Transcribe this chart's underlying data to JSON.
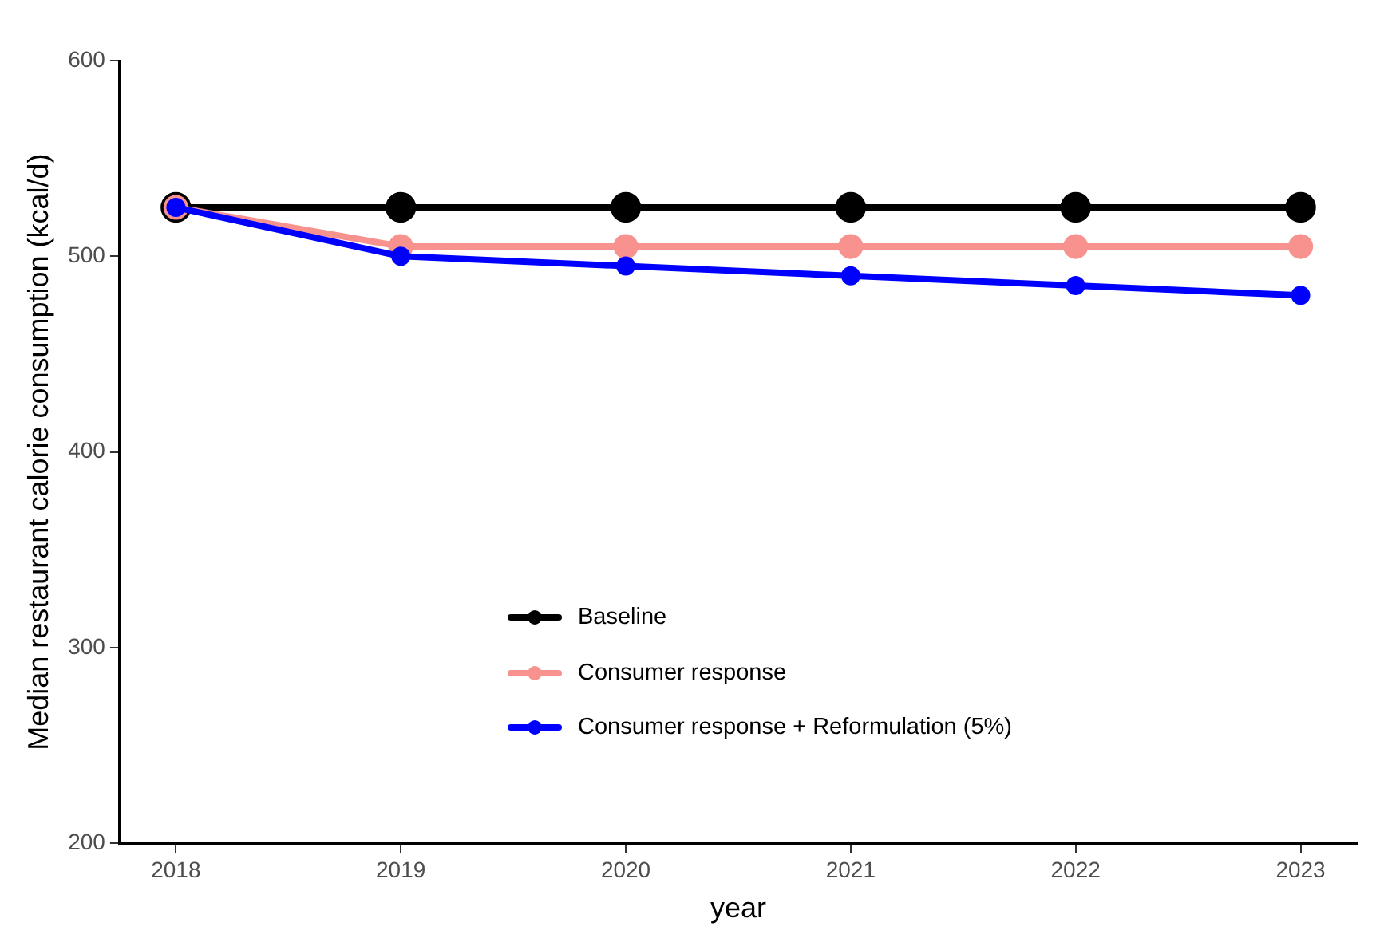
{
  "chart_data": {
    "type": "line",
    "xlabel": "year",
    "ylabel": "Median restaurant calorie consumption (kcal/d)",
    "x": [
      2018,
      2019,
      2020,
      2021,
      2022,
      2023
    ],
    "series": [
      {
        "name": "Baseline",
        "color": "#000000",
        "values": [
          525,
          525,
          525,
          525,
          525,
          525
        ]
      },
      {
        "name": "Consumer response",
        "color": "#f8928f",
        "values": [
          525,
          505,
          505,
          505,
          505,
          505
        ]
      },
      {
        "name": "Consumer response + Reformulation (5%)",
        "color": "#0000ff",
        "values": [
          525,
          500,
          495,
          490,
          485,
          480
        ]
      }
    ],
    "xlim": [
      2017.75,
      2023.25
    ],
    "xticks": [
      2018,
      2019,
      2020,
      2021,
      2022,
      2023
    ],
    "ylim": [
      200,
      600
    ],
    "yticks": [
      200,
      300,
      400,
      500,
      600
    ],
    "grid": false,
    "legend": "bottom",
    "marker": "circle",
    "line_style": "solid"
  }
}
